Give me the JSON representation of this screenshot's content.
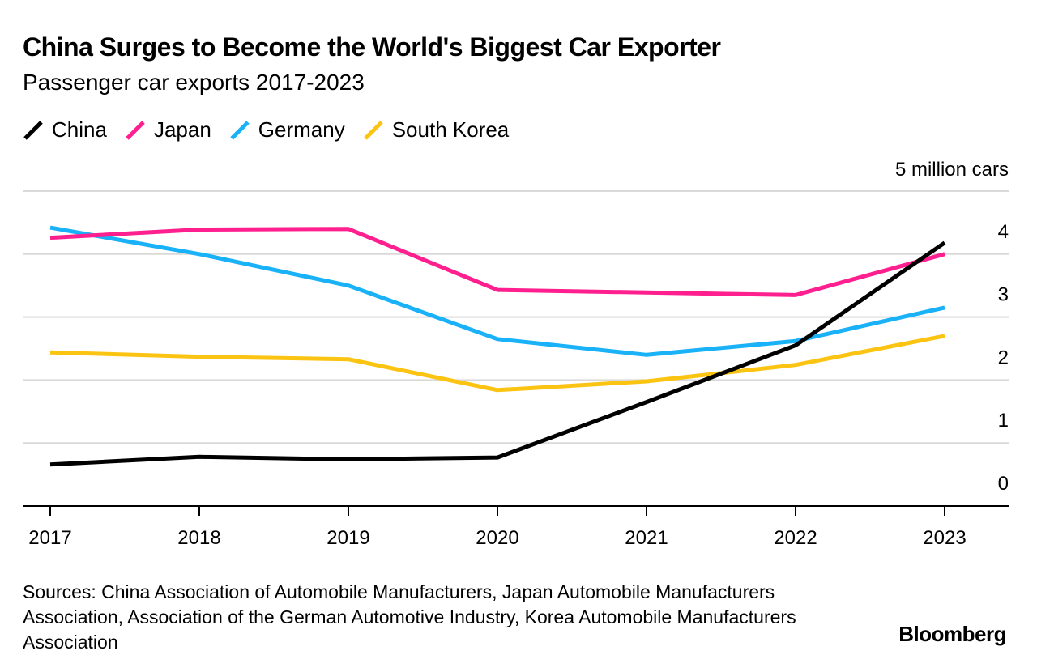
{
  "header": {
    "title": "China Surges to Become the World's Biggest Car Exporter",
    "subtitle": "Passenger car exports 2017-2023"
  },
  "footer": {
    "source": "Sources: China Association of Automobile Manufacturers, Japan Automobile Manufacturers Association, Association of the German Automotive Industry, Korea Automobile Manufacturers Association",
    "brand": "Bloomberg"
  },
  "chart_data": {
    "type": "line",
    "title": "China Surges to Become the World's Biggest Car Exporter",
    "subtitle": "Passenger car exports 2017-2023",
    "unit_label": "5 million cars",
    "x": [
      "2017",
      "2018",
      "2019",
      "2020",
      "2021",
      "2022",
      "2023"
    ],
    "y_ticks": [
      "0",
      "1",
      "2",
      "3",
      "4"
    ],
    "ylim": [
      0,
      5
    ],
    "grid": true,
    "legend_position": "top-left",
    "series": [
      {
        "name": "China",
        "color": "#000000",
        "values": [
          0.66,
          0.78,
          0.74,
          0.77,
          1.65,
          2.55,
          4.18
        ]
      },
      {
        "name": "Japan",
        "color": "#ff1f8e",
        "values": [
          4.26,
          4.39,
          4.4,
          3.43,
          3.39,
          3.35,
          4.0
        ]
      },
      {
        "name": "Germany",
        "color": "#19b1f7",
        "values": [
          4.42,
          4.0,
          3.5,
          2.65,
          2.4,
          2.62,
          3.15
        ]
      },
      {
        "name": "South Korea",
        "color": "#fbc413",
        "values": [
          2.44,
          2.37,
          2.33,
          1.84,
          1.98,
          2.24,
          2.7
        ]
      }
    ]
  }
}
